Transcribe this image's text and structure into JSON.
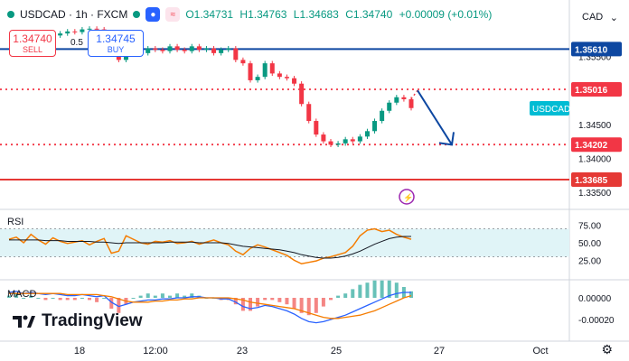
{
  "header": {
    "symbol": "USDCAD · 1h · FXCM",
    "open": "O1.34731",
    "high": "H1.34763",
    "low": "L1.34683",
    "close": "C1.34740",
    "change": "+0.00009 (+0.01%)",
    "currency": "CAD"
  },
  "trade": {
    "sell_price": "1.34740",
    "sell_label": "SELL",
    "buy_price": "1.34745",
    "buy_label": "BUY",
    "spread": "0.5"
  },
  "panes": {
    "rsi_label": "RSI",
    "macd_label": "MACD"
  },
  "brand": {
    "name": "TradingView"
  },
  "colors": {
    "candle_up": "#089981",
    "candle_down": "#f23645",
    "resistance": "#0d47a1",
    "dotted_level": "#f23645",
    "support": "#e53935",
    "arrow": "#0d47a1",
    "rsi": "#f57c00",
    "rsi_ma": "#131722",
    "macd": "#2962ff",
    "signal": "#f57c00",
    "symbol_tag": "#00bcd4"
  },
  "chart_data": {
    "type": "candlestick",
    "x_ticks": [
      "18",
      "12:00",
      "23",
      "25",
      "27",
      "Oct"
    ],
    "y_ticks": [
      1.355,
      1.345,
      1.34,
      1.335
    ],
    "y_range": [
      1.333,
      1.362
    ],
    "symbol_tag": "USDCAD",
    "levels": [
      {
        "price": 1.3561,
        "label": "1.35610",
        "style": "solid",
        "color": "#0d47a1"
      },
      {
        "price": 1.35016,
        "label": "1.35016",
        "style": "dotted",
        "color": "#f23645"
      },
      {
        "price": 1.34202,
        "label": "1.34202",
        "style": "dotted",
        "color": "#f23645"
      },
      {
        "price": 1.33685,
        "label": "1.33685",
        "style": "solid",
        "color": "#e53935"
      }
    ],
    "close_path": [
      1.3582,
      1.3577,
      1.3585,
      1.3573,
      1.357,
      1.3578,
      1.3581,
      1.3584,
      1.3587,
      1.3586,
      1.359,
      1.3591,
      1.359,
      1.3585,
      1.3555,
      1.3545,
      1.3565,
      1.356,
      1.3555,
      1.3562,
      1.356,
      1.3558,
      1.3565,
      1.356,
      1.3558,
      1.3565,
      1.356,
      1.3562,
      1.3555,
      1.356,
      1.3562,
      1.3545,
      1.354,
      1.3515,
      1.352,
      1.354,
      1.3525,
      1.352,
      1.3518,
      1.351,
      1.348,
      1.3455,
      1.3435,
      1.3425,
      1.342,
      1.3422,
      1.3428,
      1.3425,
      1.3432,
      1.344,
      1.3455,
      1.347,
      1.3482,
      1.349,
      1.3487,
      1.3474
    ],
    "projection": {
      "from": 1.35,
      "to": 1.342
    },
    "rsi": {
      "ticks": [
        75.0,
        50.0,
        25.0
      ],
      "band": [
        30,
        70
      ],
      "values": [
        55,
        58,
        50,
        62,
        54,
        48,
        57,
        52,
        49,
        51,
        53,
        47,
        52,
        56,
        35,
        38,
        60,
        55,
        50,
        48,
        52,
        51,
        53,
        49,
        50,
        52,
        48,
        51,
        54,
        50,
        47,
        38,
        33,
        42,
        47,
        44,
        40,
        36,
        32,
        25,
        20,
        22,
        24,
        28,
        30,
        33,
        36,
        45,
        60,
        68,
        70,
        66,
        68,
        62,
        58,
        55
      ],
      "ma": [
        54,
        54,
        54,
        54,
        54,
        53,
        53,
        53,
        52,
        52,
        52,
        52,
        51,
        51,
        50,
        49,
        50,
        50,
        50,
        50,
        50,
        50,
        51,
        51,
        51,
        51,
        50,
        50,
        50,
        50,
        49,
        47,
        45,
        44,
        43,
        42,
        41,
        40,
        38,
        36,
        33,
        31,
        29,
        28,
        28,
        29,
        31,
        34,
        38,
        43,
        48,
        52,
        56,
        58,
        59,
        59
      ]
    },
    "macd": {
      "ticks": [
        0.0,
        -0.0002
      ],
      "macd": [
        5e-05,
        6e-05,
        4e-05,
        5e-05,
        4e-05,
        3e-05,
        4e-05,
        3e-05,
        2e-05,
        2e-05,
        3e-05,
        2e-05,
        1e-05,
        2e-05,
        -4e-05,
        -8e-05,
        -6e-05,
        -4e-05,
        -3e-05,
        -2e-05,
        -2e-05,
        -1e-05,
        -1e-05,
        0.0,
        0.0,
        1e-05,
        1e-05,
        0.0,
        0.0,
        -1e-05,
        -1e-05,
        -4e-05,
        -8e-05,
        -0.0001,
        -9e-05,
        -7e-05,
        -8e-05,
        -0.0001,
        -0.00012,
        -0.00015,
        -0.00019,
        -0.00022,
        -0.00023,
        -0.00022,
        -0.0002,
        -0.00018,
        -0.00016,
        -0.00013,
        -0.0001,
        -7e-05,
        -4e-05,
        -1e-05,
        2e-05,
        4e-05,
        5e-05,
        5e-05
      ],
      "signal": [
        4e-05,
        4e-05,
        4e-05,
        4e-05,
        4e-05,
        4e-05,
        4e-05,
        4e-05,
        3e-05,
        3e-05,
        3e-05,
        3e-05,
        3e-05,
        2e-05,
        1e-05,
        -1e-05,
        -3e-05,
        -4e-05,
        -4e-05,
        -4e-05,
        -3e-05,
        -3e-05,
        -2e-05,
        -2e-05,
        -1e-05,
        -1e-05,
        0.0,
        0.0,
        0.0,
        0.0,
        0.0,
        -1e-05,
        -2e-05,
        -4e-05,
        -5e-05,
        -6e-05,
        -7e-05,
        -8e-05,
        -9e-05,
        -0.0001,
        -0.00012,
        -0.00014,
        -0.00016,
        -0.00018,
        -0.00019,
        -0.00019,
        -0.00018,
        -0.00017,
        -0.00016,
        -0.00014,
        -0.00012,
        -9e-05,
        -6e-05,
        -3e-05,
        0.0,
        2e-05
      ]
    }
  }
}
